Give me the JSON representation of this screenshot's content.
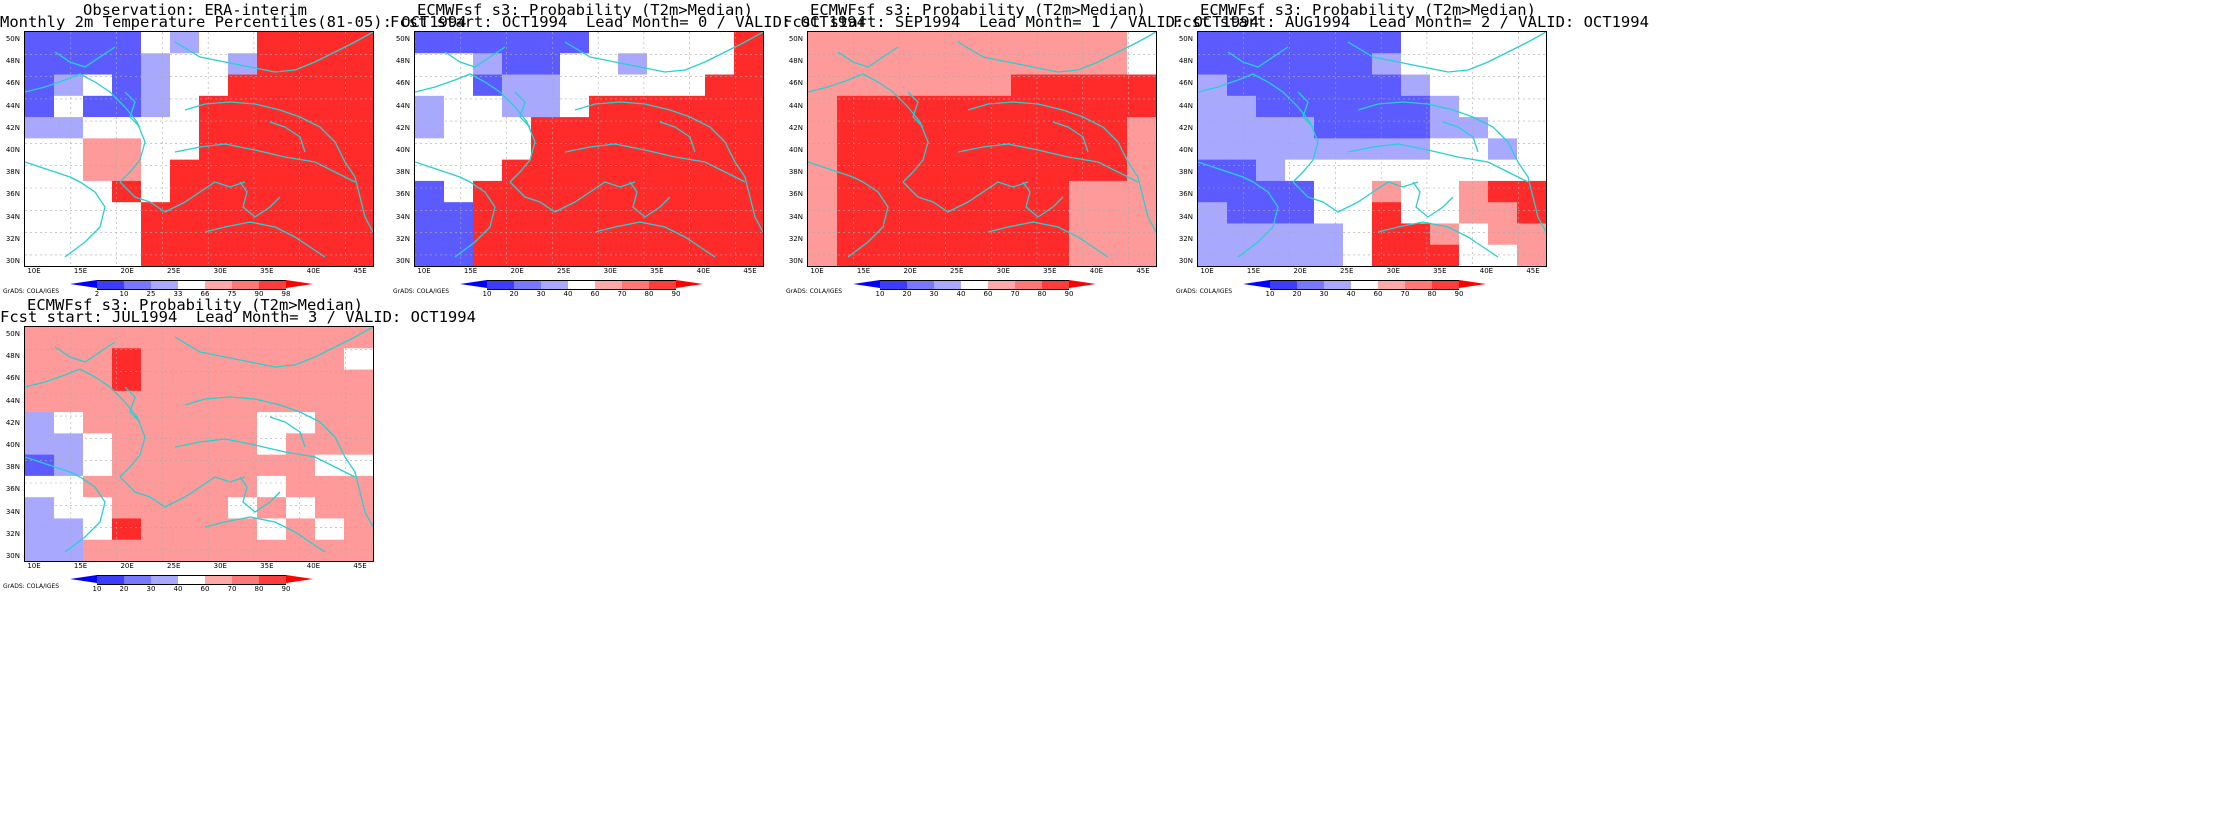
{
  "panels": [
    {
      "title1": "Observation: ERA-interim",
      "title2": "Monthly 2m Temperature Percentiles(81-05): OCT1994",
      "legend": [
        "2",
        "10",
        "25",
        "33",
        "66",
        "75",
        "90",
        "98"
      ],
      "grads_label": "GrADS: COLA/IGES",
      "grid": [
        "BBBB.b..RRRR",
        "BBBBb..bRRRR",
        "Bb.Bb..RRRRR",
        "B.BBb.RRRRRR",
        "bb....RRRRRR",
        "..rr..RRRRRR",
        "..rr.RRRRRRR",
        "...R.RRRRRRR",
        "....RRRRRRRR",
        "....RRRRRRRR",
        "....RRRRRRRR"
      ]
    },
    {
      "title1": "ECMWFsf s3: Probability (T2m>Median)",
      "title2": "Fcst start: OCT1994  Lead Month= 0 / VALID: OCT1994",
      "legend": [
        "10",
        "20",
        "30",
        "40",
        "60",
        "70",
        "80",
        "90"
      ],
      "grads_label": "GrADS: COLA/IGES",
      "grid": [
        "BBBBBB.....R",
        "..bBB..b...R",
        "..Bbb.....RR",
        "b..bb.RRRRRR",
        "b...RRRRRRRR",
        "....RRRRRRRR",
        "...RRRRRRRRR",
        "B.RRRRRRRRRR",
        "BBRRRRRRRRRR",
        "BBRRRRRRRRRR",
        "BBRRRRRRRRRR"
      ]
    },
    {
      "title1": "ECMWFsf s3: Probability (T2m>Median)",
      "title2": "Fcst start: SEP1994  Lead Month= 1 / VALID: OCT1994",
      "legend": [
        "10",
        "20",
        "30",
        "40",
        "60",
        "70",
        "80",
        "90"
      ],
      "grads_label": "GrADS: COLA/IGES",
      "grid": [
        "rrrrrrrrrrr.",
        "rrrrrrrrrrr.",
        "rrrrrrrRRRRR",
        "rRRRRRRRRRRR",
        "rRRRRRRRRRRr",
        "rRRRRRRRRRRr",
        "rRRRRRRRRRRr",
        "rRRRRRRRRrrr",
        "rRRRRRRRRrrr",
        "rRRRRRRRRrrr",
        "rRRRRRRRRrrr"
      ]
    },
    {
      "title1": "ECMWFsf s3: Probability (T2m>Median)",
      "title2": "Fcst start: AUG1994  Lead Month= 2 / VALID: OCT1994",
      "legend": [
        "10",
        "20",
        "30",
        "40",
        "60",
        "70",
        "80",
        "90"
      ],
      "grads_label": "GrADS: COLA/IGES",
      "grid": [
        "BBBBBBB.....",
        "BBBBBBb.....",
        "bBBBBBBb....",
        "bbBBBBBBb...",
        "bbbbBBBBbb..",
        "bbbbbbbb..b.",
        "BBb.........",
        "BBBB..r..rRR",
        "bBBB..R..rrR",
        "bbbbb.RRr.rr",
        "bbbbb.RRR..r"
      ]
    },
    {
      "title1": "ECMWFsf s3: Probability (T2m>Median)",
      "title2": "Fcst start: JUL1994  Lead Month= 3 / VALID: OCT1994",
      "legend": [
        "10",
        "20",
        "30",
        "40",
        "60",
        "70",
        "80",
        "90"
      ],
      "grads_label": "GrADS: COLA/IGES",
      "grid": [
        "rrrrrrrrrrrr",
        "rrrRrrrrrrr.",
        "rrrRrrrrrrrr",
        "rrrrrrrrrrrr",
        "b.rrrrrr..rr",
        "bb.rrrrr.rrr",
        "Bb.rrrrrrr..",
        "..rrrrrr.rrr",
        "b..rrrr.r.rr",
        "bb.Rrrrr.r.r",
        "bbrrrrrrrrrr"
      ]
    }
  ],
  "axes": {
    "lat_labels": [
      "50N",
      "48N",
      "46N",
      "44N",
      "42N",
      "40N",
      "38N",
      "36N",
      "34N",
      "32N",
      "30N"
    ],
    "lon_labels": [
      "10E",
      "15E",
      "20E",
      "25E",
      "30E",
      "35E",
      "40E",
      "45E"
    ]
  },
  "colors": {
    "B": "#5b5bff",
    "b": "#a8a8ff",
    ".": "#ffffff",
    "r": "#ff9a9a",
    "R": "#ff2a2a",
    "coast": "#27d0d0",
    "legend": [
      "#0000ff",
      "#3c3cff",
      "#7878ff",
      "#a8a8ff",
      "#ffffff",
      "#ffa8a8",
      "#ff7878",
      "#ff3c3c",
      "#ff0000"
    ]
  }
}
